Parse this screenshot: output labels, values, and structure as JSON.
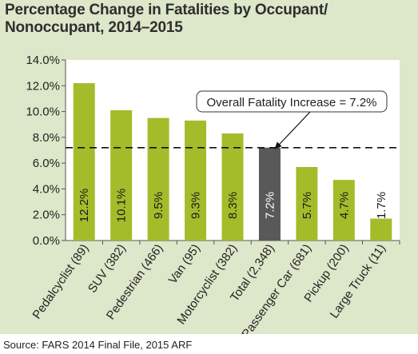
{
  "title_line1": "Percentage Change in Fatalities by Occupant/",
  "title_line2": "Nonoccupant, 2014–2015",
  "source": "Source: FARS 2014 Final File, 2015 ARF",
  "colors": {
    "panel": "#dde7c9",
    "plot_bg": "#ffffff",
    "bar": "#a4bc2a",
    "highlight_bar": "#595959",
    "axis": "#555555"
  },
  "chart_data": {
    "type": "bar",
    "title": "Percentage Change in Fatalities by Occupant/ Nonoccupant, 2014–2015",
    "categories": [
      "Pedalcyclist (89)",
      "SUV (382)",
      "Pedestrian (466)",
      "Van (95)",
      "Motorcyclist (382)",
      "Total (2,348)",
      "Passenger Car (681)",
      "Pickup (200)",
      "Large Truck (11)"
    ],
    "values": [
      12.2,
      10.1,
      9.5,
      9.3,
      8.3,
      7.2,
      5.7,
      4.7,
      1.7
    ],
    "value_labels": [
      "12.2%",
      "10.1%",
      "9.5%",
      "9.3%",
      "8.3%",
      "7.2%",
      "5.7%",
      "4.7%",
      "1.7%"
    ],
    "highlight_index": 5,
    "ylim": [
      0,
      14
    ],
    "yticks": [
      "0.0%",
      "2.0%",
      "4.0%",
      "6.0%",
      "8.0%",
      "10.0%",
      "12.0%",
      "14.0%"
    ],
    "reference_line": {
      "value": 7.2,
      "label": "Overall Fatality Increase = 7.2%"
    },
    "xlabel": "",
    "ylabel": "",
    "grid": false
  }
}
